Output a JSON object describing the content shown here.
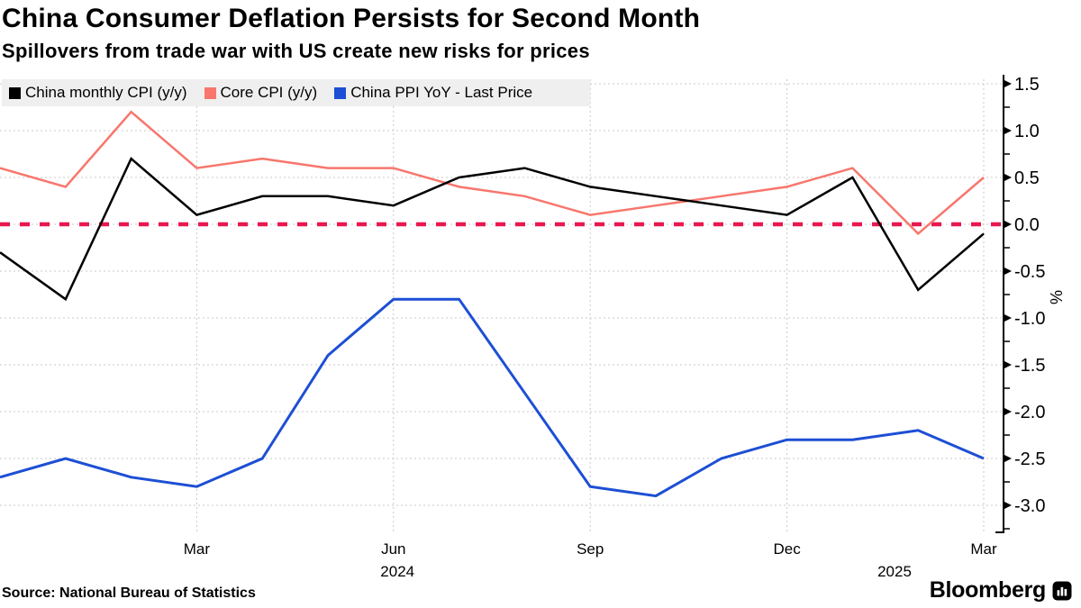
{
  "header": {
    "title": "China Consumer Deflation Persists for Second Month",
    "subtitle": "Spillovers from trade war with US create new risks for prices"
  },
  "legend": [
    {
      "label": "China monthly CPI (y/y)",
      "color": "#000000"
    },
    {
      "label": "Core CPI (y/y)",
      "color": "#f8766d"
    },
    {
      "label": "China PPI YoY - Last Price",
      "color": "#1d4fd4"
    }
  ],
  "footer": {
    "source": "Source: National Bureau of Statistics",
    "brand": "Bloomberg"
  },
  "chart_data": {
    "type": "line",
    "x": [
      "Dec 2023",
      "Jan 2024",
      "Feb 2024",
      "Mar 2024",
      "Apr 2024",
      "May 2024",
      "Jun 2024",
      "Jul 2024",
      "Aug 2024",
      "Sep 2024",
      "Oct 2024",
      "Nov 2024",
      "Dec 2024",
      "Jan 2025",
      "Feb 2025",
      "Mar 2025"
    ],
    "series": [
      {
        "name": "China monthly CPI (y/y)",
        "color": "#000000",
        "width": 2.5,
        "values": [
          -0.3,
          -0.8,
          0.7,
          0.1,
          0.3,
          0.3,
          0.2,
          0.5,
          0.6,
          0.4,
          0.3,
          0.2,
          0.1,
          0.5,
          -0.7,
          -0.1
        ]
      },
      {
        "name": "Core CPI (y/y)",
        "color": "#f8766d",
        "width": 2.5,
        "values": [
          0.6,
          0.4,
          1.2,
          0.6,
          0.7,
          0.6,
          0.6,
          0.4,
          0.3,
          0.1,
          0.2,
          0.3,
          0.4,
          0.6,
          -0.1,
          0.5
        ]
      },
      {
        "name": "China PPI YoY - Last Price",
        "color": "#1d4fd4",
        "width": 3,
        "values": [
          -2.7,
          -2.5,
          -2.7,
          -2.8,
          -2.5,
          -1.4,
          -0.8,
          -0.8,
          -1.8,
          -2.8,
          -2.9,
          -2.5,
          -2.3,
          -2.3,
          -2.2,
          -2.5
        ]
      }
    ],
    "title": "China Consumer Deflation Persists for Second Month",
    "xlabel": "",
    "ylabel": "%",
    "ylim": [
      -3.29,
      1.6
    ],
    "y_ticks": [
      1.5,
      1.0,
      0.5,
      0.0,
      -0.5,
      -1.0,
      -1.5,
      -2.0,
      -2.5,
      -3.0
    ],
    "y_tick_labels": [
      "1.5",
      "1.0",
      "0.5",
      "0.0",
      "-0.5",
      "-1.0",
      "-1.5",
      "-2.0",
      "-2.5",
      "-3.0"
    ],
    "x_ticks": [
      {
        "index": 3,
        "label": "Mar"
      },
      {
        "index": 6,
        "label": "Jun"
      },
      {
        "index": 9,
        "label": "Sep"
      },
      {
        "index": 12,
        "label": "Dec"
      },
      {
        "index": 15,
        "label": "Mar"
      }
    ],
    "year_labels": [
      {
        "index": 6.06,
        "label": "2024"
      },
      {
        "index": 13.64,
        "label": "2025"
      }
    ],
    "zero_line": {
      "value": 0.0,
      "color": "#e8174f"
    },
    "grid": true,
    "legend_position": "top-left"
  }
}
